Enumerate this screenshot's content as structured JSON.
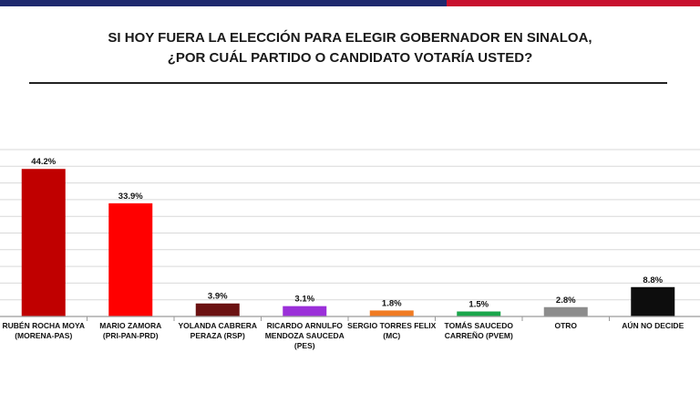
{
  "colors": {
    "top_bar_left": "#1f2a6e",
    "top_bar_right": "#c8102e",
    "grid": "#d9d9d9",
    "axis": "#9a9a9a"
  },
  "chart_data": {
    "type": "bar",
    "title_lines": [
      "SI HOY FUERA LA ELECCIÓN PARA ELEGIR GOBERNADOR EN SINALOA,",
      "¿POR CUÁL PARTIDO O CANDIDATO VOTARÍA USTED?"
    ],
    "xlabel": "",
    "ylabel": "",
    "grid": true,
    "ylim": [
      0,
      50
    ],
    "unit": "%",
    "categories": [
      {
        "lines": [
          "RUBÉN ROCHA MOYA",
          "(MORENA-PAS)"
        ],
        "value": 44.2,
        "label": "44.2%",
        "color": "#c00000"
      },
      {
        "lines": [
          "MARIO ZAMORA",
          "(PRI-PAN-PRD)"
        ],
        "value": 33.9,
        "label": "33.9%",
        "color": "#ff0000"
      },
      {
        "lines": [
          "YOLANDA CABRERA",
          "PERAZA (RSP)"
        ],
        "value": 3.9,
        "label": "3.9%",
        "color": "#6b1212"
      },
      {
        "lines": [
          "RICARDO ARNULFO",
          "MENDOZA SAUCEDA",
          "(PES)"
        ],
        "value": 3.1,
        "label": "3.1%",
        "color": "#9b30d9"
      },
      {
        "lines": [
          "SERGIO TORRES FELIX",
          "(MC)"
        ],
        "value": 1.8,
        "label": "1.8%",
        "color": "#f07b22"
      },
      {
        "lines": [
          "TOMÁS SAUCEDO",
          "CARREÑO (PVEM)"
        ],
        "value": 1.5,
        "label": "1.5%",
        "color": "#1aa64b"
      },
      {
        "lines": [
          "OTRO"
        ],
        "value": 2.8,
        "label": "2.8%",
        "color": "#8c8c8c"
      },
      {
        "lines": [
          "AÚN NO DECIDE"
        ],
        "value": 8.8,
        "label": "8.8%",
        "color": "#0d0d0d"
      }
    ]
  }
}
